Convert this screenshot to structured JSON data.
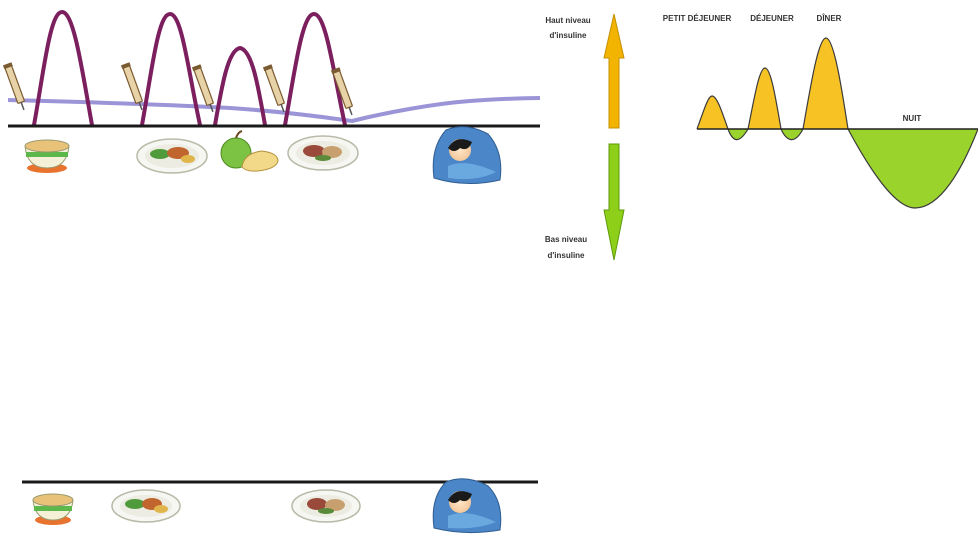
{
  "colors": {
    "insulin_curve": "#7b1f5e",
    "baseline_curve": "#9b95d8",
    "axis": "#1a1a1a",
    "high_arrow": "#f2b400",
    "low_arrow": "#8ecf1a",
    "peak_fill": "#f7c224",
    "night_fill": "#9ad32c"
  },
  "arrows": {
    "high_label_1": "Haut niveau",
    "high_label_2": "d'insuline",
    "low_label_1": "Bas niveau",
    "low_label_2": "d'insuline"
  },
  "profile": {
    "label_breakfast": "PETIT DÉJEUNER",
    "label_lunch": "DÉJEUNER",
    "label_dinner": "DÎNER",
    "label_night": "NUIT"
  },
  "icons": {
    "top_row": [
      "cereal-bowl-icon",
      "meal-plate-icon",
      "fruit-snack-icon",
      "meal-plate-icon",
      "sleeping-person-icon"
    ],
    "bottom_row": [
      "cereal-bowl-icon",
      "meal-plate-icon",
      "meal-plate-icon",
      "sleeping-person-icon"
    ]
  }
}
